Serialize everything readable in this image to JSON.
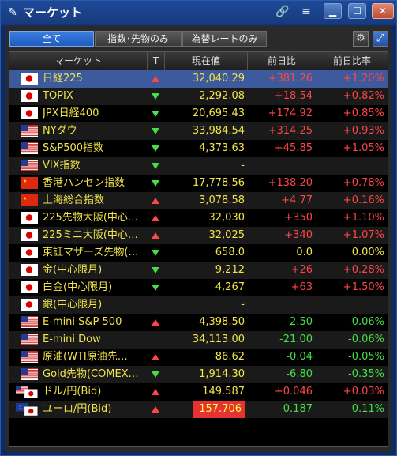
{
  "window": {
    "title": "マーケット"
  },
  "tabs": [
    {
      "label": "全て",
      "active": true
    },
    {
      "label": "指数･先物のみ",
      "active": false
    },
    {
      "label": "為替レートのみ",
      "active": false
    }
  ],
  "columns": {
    "name": "マーケット",
    "trend": "T",
    "price": "現在値",
    "change": "前日比",
    "change_pct": "前日比率"
  },
  "colors": {
    "up": "#ff4646",
    "down": "#46e046",
    "text": "#f2e44a",
    "selected": "#3d5a9c",
    "highlight": "#e63232"
  },
  "rows": [
    {
      "flag": "jp",
      "name": "日経225",
      "trend": "up",
      "price": "32,040.29",
      "change": "+381.26",
      "change_pct": "+1.20%",
      "dir": "up",
      "selected": true
    },
    {
      "flag": "jp",
      "name": "TOPIX",
      "trend": "down",
      "price": "2,292.08",
      "change": "+18.54",
      "change_pct": "+0.82%",
      "dir": "up"
    },
    {
      "flag": "jp",
      "name": "JPX日経400",
      "trend": "down",
      "price": "20,695.43",
      "change": "+174.92",
      "change_pct": "+0.85%",
      "dir": "up"
    },
    {
      "flag": "us",
      "name": "NYダウ",
      "trend": "down",
      "price": "33,984.54",
      "change": "+314.25",
      "change_pct": "+0.93%",
      "dir": "up"
    },
    {
      "flag": "us",
      "name": "S&P500指数",
      "trend": "down",
      "price": "4,373.63",
      "change": "+45.85",
      "change_pct": "+1.05%",
      "dir": "up"
    },
    {
      "flag": "us",
      "name": "VIX指数",
      "trend": "down",
      "price": "-",
      "change": "",
      "change_pct": "",
      "dir": "zero"
    },
    {
      "flag": "cn",
      "name": "香港ハンセン指数",
      "trend": "down",
      "price": "17,778.56",
      "change": "+138.20",
      "change_pct": "+0.78%",
      "dir": "up"
    },
    {
      "flag": "cn",
      "name": "上海総合指数",
      "trend": "up",
      "price": "3,078.58",
      "change": "+4.77",
      "change_pct": "+0.16%",
      "dir": "up"
    },
    {
      "flag": "jp",
      "name": "225先物大阪(中心…",
      "trend": "up",
      "price": "32,030",
      "change": "+350",
      "change_pct": "+1.10%",
      "dir": "up"
    },
    {
      "flag": "jp",
      "name": "225ミニ大阪(中心…",
      "trend": "up",
      "price": "32,025",
      "change": "+340",
      "change_pct": "+1.07%",
      "dir": "up"
    },
    {
      "flag": "jp",
      "name": "東証マザーズ先物(…",
      "trend": "down",
      "price": "658.0",
      "change": "0.0",
      "change_pct": "0.00%",
      "dir": "zero"
    },
    {
      "flag": "jp",
      "name": "金(中心限月)",
      "trend": "down",
      "price": "9,212",
      "change": "+26",
      "change_pct": "+0.28%",
      "dir": "up"
    },
    {
      "flag": "jp",
      "name": "白金(中心限月)",
      "trend": "down",
      "price": "4,267",
      "change": "+63",
      "change_pct": "+1.50%",
      "dir": "up"
    },
    {
      "flag": "jp",
      "name": "銀(中心限月)",
      "trend": "",
      "price": "-",
      "change": "",
      "change_pct": "",
      "dir": "zero"
    },
    {
      "flag": "us",
      "name": "E-mini S&P 500",
      "trend": "up",
      "price": "4,398.50",
      "change": "-2.50",
      "change_pct": "-0.06%",
      "dir": "down"
    },
    {
      "flag": "us",
      "name": "E-mini Dow",
      "trend": "",
      "price": "34,113.00",
      "change": "-21.00",
      "change_pct": "-0.06%",
      "dir": "down"
    },
    {
      "flag": "us",
      "name": "原油(WTI原油先…",
      "trend": "up",
      "price": "86.62",
      "change": "-0.04",
      "change_pct": "-0.05%",
      "dir": "down"
    },
    {
      "flag": "us",
      "name": "Gold先物(COMEX…",
      "trend": "down",
      "price": "1,914.30",
      "change": "-6.80",
      "change_pct": "-0.35%",
      "dir": "down"
    },
    {
      "flag": "usjp",
      "name": "ドル/円(Bid)",
      "trend": "up",
      "price": "149.587",
      "change": "+0.046",
      "change_pct": "+0.03%",
      "dir": "up"
    },
    {
      "flag": "eujp",
      "name": "ユーロ/円(Bid)",
      "trend": "up",
      "price": "157.706",
      "change": "-0.187",
      "change_pct": "-0.11%",
      "dir": "down",
      "highlight": true
    }
  ]
}
